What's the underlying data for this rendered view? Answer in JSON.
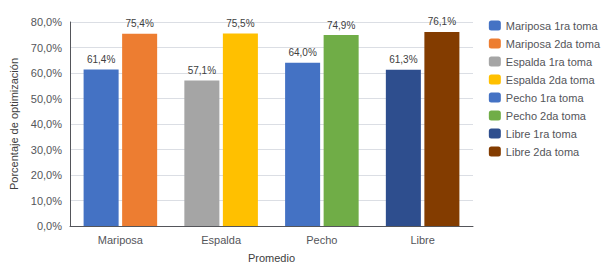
{
  "chart_data": {
    "type": "bar",
    "categories": [
      "Mariposa",
      "Espalda",
      "Pecho",
      "Libre"
    ],
    "xlabel": "Promedio",
    "ylabel": "Porcentaje de optimización",
    "series": [
      {
        "name": "Mariposa 1ra toma",
        "color": "#4472C4",
        "values": [
          61.4,
          null,
          null,
          null
        ],
        "value_labels": [
          "61,4%",
          null,
          null,
          null
        ]
      },
      {
        "name": "Mariposa 2da toma",
        "color": "#ED7D31",
        "values": [
          75.4,
          null,
          null,
          null
        ],
        "value_labels": [
          "75,4%",
          null,
          null,
          null
        ]
      },
      {
        "name": "Espalda 1ra toma",
        "color": "#A5A5A5",
        "values": [
          null,
          57.1,
          null,
          null
        ],
        "value_labels": [
          null,
          "57,1%",
          null,
          null
        ]
      },
      {
        "name": "Espalda 2da toma",
        "color": "#FFC000",
        "values": [
          null,
          75.5,
          null,
          null
        ],
        "value_labels": [
          null,
          "75,5%",
          null,
          null
        ]
      },
      {
        "name": "Pecho 1ra toma",
        "color": "#4472C4",
        "values": [
          null,
          null,
          64.0,
          null
        ],
        "value_labels": [
          null,
          null,
          "64,0%",
          null
        ]
      },
      {
        "name": "Pecho 2da toma",
        "color": "#70AD47",
        "values": [
          null,
          null,
          74.9,
          null
        ],
        "value_labels": [
          null,
          null,
          "74,9%",
          null
        ]
      },
      {
        "name": "Libre 1ra toma",
        "color": "#2E4E8E",
        "values": [
          null,
          null,
          null,
          61.3
        ],
        "value_labels": [
          null,
          null,
          null,
          "61,3%"
        ]
      },
      {
        "name": "Libre 2da toma",
        "color": "#833C00",
        "values": [
          null,
          null,
          null,
          76.1
        ],
        "value_labels": [
          null,
          null,
          null,
          "76,1%"
        ]
      }
    ],
    "ylim": [
      0,
      80
    ],
    "yticks": [
      {
        "value": 0,
        "label": "0,0%"
      },
      {
        "value": 10,
        "label": "10,0%"
      },
      {
        "value": 20,
        "label": "20,0%"
      },
      {
        "value": 30,
        "label": "30,0%"
      },
      {
        "value": 40,
        "label": "40,0%"
      },
      {
        "value": 50,
        "label": "50,0%"
      },
      {
        "value": 60,
        "label": "60,0%"
      },
      {
        "value": 70,
        "label": "70,0%"
      },
      {
        "value": 80,
        "label": "80,0%"
      }
    ],
    "grid": true,
    "legend": "right",
    "data_labels": true
  }
}
